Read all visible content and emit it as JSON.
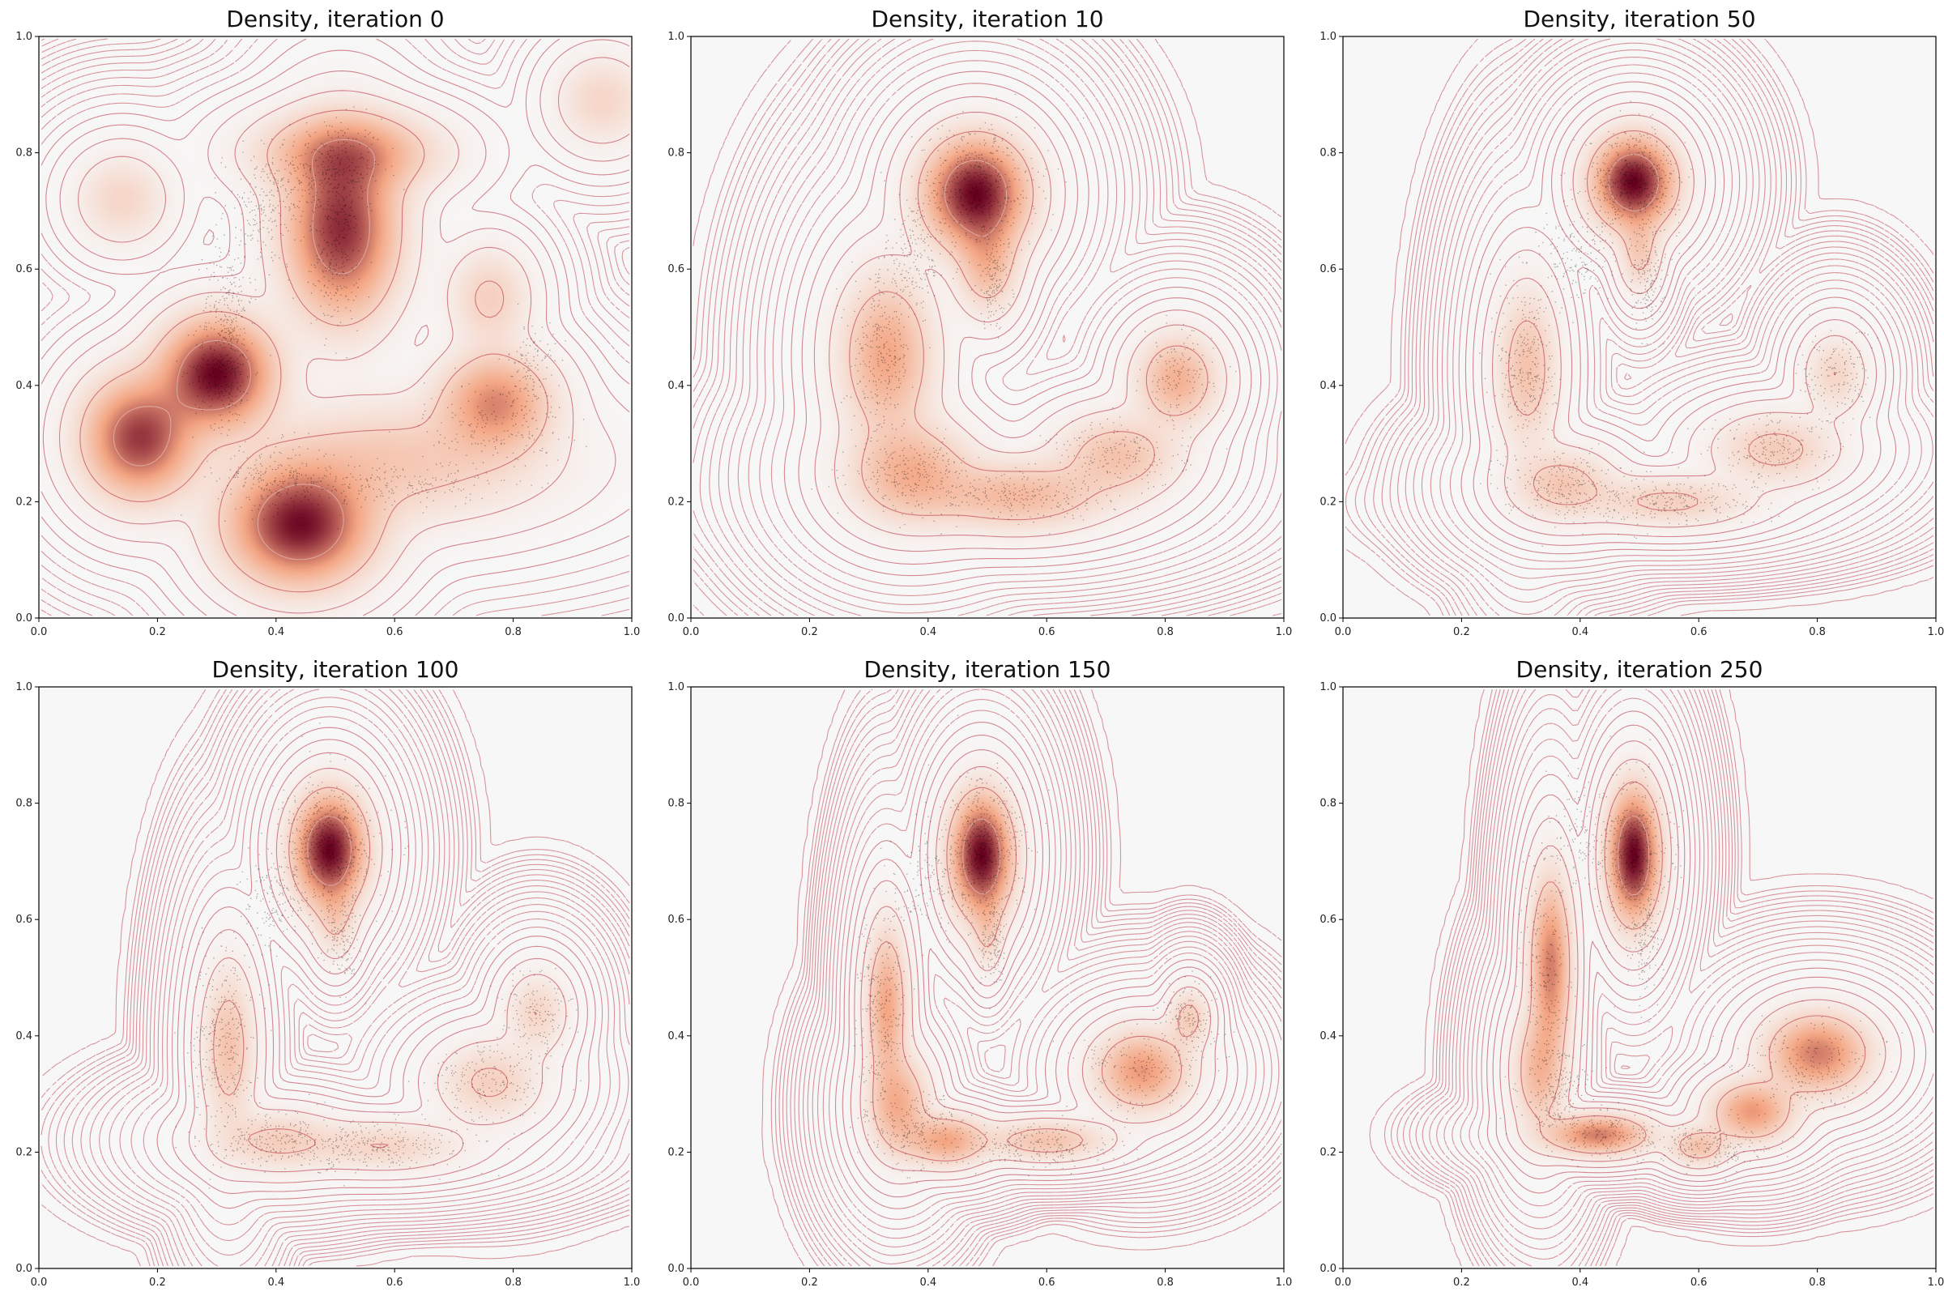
{
  "figure": {
    "axis_range": {
      "xlim": [
        0.0,
        1.0
      ],
      "ylim": [
        0.0,
        1.0
      ]
    },
    "x_ticks": [
      "0.0",
      "0.2",
      "0.4",
      "0.6",
      "0.8",
      "1.0"
    ],
    "y_ticks": [
      "0.0",
      "0.2",
      "0.4",
      "0.6",
      "0.8",
      "1.0"
    ],
    "colormap": {
      "low": "#f7f7f7",
      "mid": "#f4a582",
      "high": "#67001f"
    },
    "contour_color": "#b2182b",
    "scatter_color": "#000000"
  },
  "chart_data": [
    {
      "type": "heatmap",
      "title": "Density, iteration 0",
      "xlim": [
        0,
        1
      ],
      "ylim": [
        0,
        1
      ],
      "grid": false,
      "density_components": [
        {
          "x": 0.3,
          "y": 0.42,
          "sx": 0.055,
          "sy": 0.055,
          "w": 1.0
        },
        {
          "x": 0.44,
          "y": 0.16,
          "sx": 0.07,
          "sy": 0.06,
          "w": 0.95
        },
        {
          "x": 0.17,
          "y": 0.31,
          "sx": 0.055,
          "sy": 0.06,
          "w": 0.8
        },
        {
          "x": 0.51,
          "y": 0.67,
          "sx": 0.055,
          "sy": 0.09,
          "w": 0.85
        },
        {
          "x": 0.52,
          "y": 0.8,
          "sx": 0.085,
          "sy": 0.04,
          "w": 0.45
        },
        {
          "x": 0.77,
          "y": 0.37,
          "sx": 0.055,
          "sy": 0.05,
          "w": 0.5
        },
        {
          "x": 0.76,
          "y": 0.55,
          "sx": 0.04,
          "sy": 0.05,
          "w": 0.18
        },
        {
          "x": 0.14,
          "y": 0.72,
          "sx": 0.045,
          "sy": 0.045,
          "w": 0.15
        },
        {
          "x": 0.95,
          "y": 0.89,
          "sx": 0.045,
          "sy": 0.045,
          "w": 0.15
        },
        {
          "x": 0.6,
          "y": 0.27,
          "sx": 0.15,
          "sy": 0.06,
          "w": 0.22
        }
      ],
      "sample_clusters": [
        {
          "x": 0.49,
          "y": 0.77,
          "sx": 0.045,
          "sy": 0.045,
          "n": 350
        },
        {
          "x": 0.5,
          "y": 0.62,
          "sx": 0.02,
          "sy": 0.06,
          "n": 250
        },
        {
          "x": 0.38,
          "y": 0.7,
          "sx": 0.035,
          "sy": 0.05,
          "n": 200
        },
        {
          "x": 0.32,
          "y": 0.55,
          "sx": 0.02,
          "sy": 0.05,
          "n": 150
        },
        {
          "x": 0.31,
          "y": 0.43,
          "sx": 0.025,
          "sy": 0.05,
          "n": 300
        },
        {
          "x": 0.4,
          "y": 0.24,
          "sx": 0.05,
          "sy": 0.03,
          "n": 250
        },
        {
          "x": 0.6,
          "y": 0.23,
          "sx": 0.08,
          "sy": 0.02,
          "n": 200
        },
        {
          "x": 0.77,
          "y": 0.33,
          "sx": 0.06,
          "sy": 0.04,
          "n": 200
        },
        {
          "x": 0.83,
          "y": 0.43,
          "sx": 0.02,
          "sy": 0.04,
          "n": 120
        }
      ]
    },
    {
      "type": "heatmap",
      "title": "Density, iteration 10",
      "xlim": [
        0,
        1
      ],
      "ylim": [
        0,
        1
      ],
      "grid": false,
      "density_components": [
        {
          "x": 0.48,
          "y": 0.73,
          "sx": 0.05,
          "sy": 0.055,
          "w": 1.0
        },
        {
          "x": 0.5,
          "y": 0.61,
          "sx": 0.03,
          "sy": 0.05,
          "w": 0.3
        },
        {
          "x": 0.33,
          "y": 0.45,
          "sx": 0.045,
          "sy": 0.08,
          "w": 0.4
        },
        {
          "x": 0.37,
          "y": 0.25,
          "sx": 0.06,
          "sy": 0.05,
          "w": 0.35
        },
        {
          "x": 0.55,
          "y": 0.21,
          "sx": 0.09,
          "sy": 0.035,
          "w": 0.3
        },
        {
          "x": 0.72,
          "y": 0.28,
          "sx": 0.06,
          "sy": 0.04,
          "w": 0.25
        },
        {
          "x": 0.82,
          "y": 0.41,
          "sx": 0.04,
          "sy": 0.045,
          "w": 0.35
        }
      ],
      "sample_clusters": [
        {
          "x": 0.48,
          "y": 0.74,
          "sx": 0.05,
          "sy": 0.055,
          "n": 500
        },
        {
          "x": 0.51,
          "y": 0.58,
          "sx": 0.015,
          "sy": 0.04,
          "n": 150
        },
        {
          "x": 0.38,
          "y": 0.62,
          "sx": 0.025,
          "sy": 0.05,
          "n": 150
        },
        {
          "x": 0.32,
          "y": 0.45,
          "sx": 0.025,
          "sy": 0.07,
          "n": 300
        },
        {
          "x": 0.37,
          "y": 0.25,
          "sx": 0.05,
          "sy": 0.03,
          "n": 250
        },
        {
          "x": 0.55,
          "y": 0.21,
          "sx": 0.08,
          "sy": 0.02,
          "n": 250
        },
        {
          "x": 0.72,
          "y": 0.28,
          "sx": 0.06,
          "sy": 0.03,
          "n": 200
        },
        {
          "x": 0.82,
          "y": 0.41,
          "sx": 0.03,
          "sy": 0.04,
          "n": 150
        }
      ]
    },
    {
      "type": "heatmap",
      "title": "Density, iteration 50",
      "xlim": [
        0,
        1
      ],
      "ylim": [
        0,
        1
      ],
      "grid": false,
      "density_components": [
        {
          "x": 0.49,
          "y": 0.75,
          "sx": 0.04,
          "sy": 0.045,
          "w": 1.0
        },
        {
          "x": 0.5,
          "y": 0.63,
          "sx": 0.02,
          "sy": 0.04,
          "w": 0.2
        },
        {
          "x": 0.31,
          "y": 0.43,
          "sx": 0.03,
          "sy": 0.08,
          "w": 0.25
        },
        {
          "x": 0.37,
          "y": 0.23,
          "sx": 0.05,
          "sy": 0.035,
          "w": 0.22
        },
        {
          "x": 0.55,
          "y": 0.2,
          "sx": 0.08,
          "sy": 0.025,
          "w": 0.18
        },
        {
          "x": 0.73,
          "y": 0.29,
          "sx": 0.06,
          "sy": 0.035,
          "w": 0.2
        },
        {
          "x": 0.83,
          "y": 0.42,
          "sx": 0.03,
          "sy": 0.04,
          "w": 0.15
        }
      ],
      "sample_clusters": [
        {
          "x": 0.49,
          "y": 0.75,
          "sx": 0.04,
          "sy": 0.045,
          "n": 500
        },
        {
          "x": 0.51,
          "y": 0.58,
          "sx": 0.015,
          "sy": 0.04,
          "n": 150
        },
        {
          "x": 0.39,
          "y": 0.62,
          "sx": 0.03,
          "sy": 0.04,
          "n": 150
        },
        {
          "x": 0.31,
          "y": 0.43,
          "sx": 0.025,
          "sy": 0.08,
          "n": 300
        },
        {
          "x": 0.37,
          "y": 0.23,
          "sx": 0.05,
          "sy": 0.03,
          "n": 250
        },
        {
          "x": 0.55,
          "y": 0.2,
          "sx": 0.08,
          "sy": 0.02,
          "n": 250
        },
        {
          "x": 0.73,
          "y": 0.29,
          "sx": 0.06,
          "sy": 0.03,
          "n": 200
        },
        {
          "x": 0.83,
          "y": 0.42,
          "sx": 0.03,
          "sy": 0.04,
          "n": 150
        }
      ]
    },
    {
      "type": "heatmap",
      "title": "Density, iteration 100",
      "xlim": [
        0,
        1
      ],
      "ylim": [
        0,
        1
      ],
      "grid": false,
      "density_components": [
        {
          "x": 0.49,
          "y": 0.72,
          "sx": 0.035,
          "sy": 0.055,
          "w": 1.0
        },
        {
          "x": 0.5,
          "y": 0.6,
          "sx": 0.02,
          "sy": 0.04,
          "w": 0.15
        },
        {
          "x": 0.32,
          "y": 0.38,
          "sx": 0.025,
          "sy": 0.08,
          "w": 0.25
        },
        {
          "x": 0.4,
          "y": 0.22,
          "sx": 0.06,
          "sy": 0.03,
          "w": 0.18
        },
        {
          "x": 0.58,
          "y": 0.21,
          "sx": 0.08,
          "sy": 0.025,
          "w": 0.15
        },
        {
          "x": 0.76,
          "y": 0.32,
          "sx": 0.05,
          "sy": 0.04,
          "w": 0.18
        },
        {
          "x": 0.84,
          "y": 0.44,
          "sx": 0.03,
          "sy": 0.04,
          "w": 0.15
        }
      ],
      "sample_clusters": [
        {
          "x": 0.49,
          "y": 0.73,
          "sx": 0.04,
          "sy": 0.055,
          "n": 500
        },
        {
          "x": 0.51,
          "y": 0.57,
          "sx": 0.015,
          "sy": 0.04,
          "n": 150
        },
        {
          "x": 0.4,
          "y": 0.63,
          "sx": 0.03,
          "sy": 0.04,
          "n": 150
        },
        {
          "x": 0.31,
          "y": 0.4,
          "sx": 0.025,
          "sy": 0.08,
          "n": 300
        },
        {
          "x": 0.4,
          "y": 0.22,
          "sx": 0.06,
          "sy": 0.025,
          "n": 250
        },
        {
          "x": 0.58,
          "y": 0.21,
          "sx": 0.08,
          "sy": 0.02,
          "n": 250
        },
        {
          "x": 0.76,
          "y": 0.32,
          "sx": 0.05,
          "sy": 0.035,
          "n": 200
        },
        {
          "x": 0.84,
          "y": 0.44,
          "sx": 0.03,
          "sy": 0.04,
          "n": 150
        }
      ]
    },
    {
      "type": "heatmap",
      "title": "Density, iteration 150",
      "xlim": [
        0,
        1
      ],
      "ylim": [
        0,
        1
      ],
      "grid": false,
      "density_components": [
        {
          "x": 0.49,
          "y": 0.71,
          "sx": 0.03,
          "sy": 0.06,
          "w": 1.0
        },
        {
          "x": 0.5,
          "y": 0.58,
          "sx": 0.015,
          "sy": 0.04,
          "w": 0.15
        },
        {
          "x": 0.33,
          "y": 0.45,
          "sx": 0.02,
          "sy": 0.08,
          "w": 0.4
        },
        {
          "x": 0.35,
          "y": 0.28,
          "sx": 0.03,
          "sy": 0.05,
          "w": 0.35
        },
        {
          "x": 0.43,
          "y": 0.22,
          "sx": 0.04,
          "sy": 0.025,
          "w": 0.4
        },
        {
          "x": 0.6,
          "y": 0.22,
          "sx": 0.06,
          "sy": 0.02,
          "w": 0.25
        },
        {
          "x": 0.76,
          "y": 0.34,
          "sx": 0.045,
          "sy": 0.04,
          "w": 0.45
        },
        {
          "x": 0.84,
          "y": 0.43,
          "sx": 0.02,
          "sy": 0.03,
          "w": 0.2
        }
      ],
      "sample_clusters": [
        {
          "x": 0.49,
          "y": 0.72,
          "sx": 0.035,
          "sy": 0.06,
          "n": 500
        },
        {
          "x": 0.51,
          "y": 0.56,
          "sx": 0.012,
          "sy": 0.04,
          "n": 150
        },
        {
          "x": 0.4,
          "y": 0.66,
          "sx": 0.03,
          "sy": 0.04,
          "n": 120
        },
        {
          "x": 0.32,
          "y": 0.44,
          "sx": 0.02,
          "sy": 0.09,
          "n": 300
        },
        {
          "x": 0.38,
          "y": 0.24,
          "sx": 0.04,
          "sy": 0.03,
          "n": 250
        },
        {
          "x": 0.58,
          "y": 0.21,
          "sx": 0.07,
          "sy": 0.02,
          "n": 250
        },
        {
          "x": 0.76,
          "y": 0.34,
          "sx": 0.05,
          "sy": 0.035,
          "n": 200
        },
        {
          "x": 0.84,
          "y": 0.43,
          "sx": 0.025,
          "sy": 0.035,
          "n": 150
        }
      ]
    },
    {
      "type": "heatmap",
      "title": "Density, iteration 250",
      "xlim": [
        0,
        1
      ],
      "ylim": [
        0,
        1
      ],
      "grid": false,
      "density_components": [
        {
          "x": 0.49,
          "y": 0.71,
          "sx": 0.025,
          "sy": 0.065,
          "w": 1.0
        },
        {
          "x": 0.35,
          "y": 0.52,
          "sx": 0.02,
          "sy": 0.09,
          "w": 0.55
        },
        {
          "x": 0.33,
          "y": 0.34,
          "sx": 0.025,
          "sy": 0.06,
          "w": 0.3
        },
        {
          "x": 0.43,
          "y": 0.23,
          "sx": 0.05,
          "sy": 0.02,
          "w": 0.55
        },
        {
          "x": 0.6,
          "y": 0.21,
          "sx": 0.03,
          "sy": 0.02,
          "w": 0.25
        },
        {
          "x": 0.69,
          "y": 0.27,
          "sx": 0.04,
          "sy": 0.03,
          "w": 0.45
        },
        {
          "x": 0.8,
          "y": 0.37,
          "sx": 0.05,
          "sy": 0.04,
          "w": 0.55
        }
      ],
      "sample_clusters": [
        {
          "x": 0.49,
          "y": 0.71,
          "sx": 0.03,
          "sy": 0.07,
          "n": 450
        },
        {
          "x": 0.51,
          "y": 0.56,
          "sx": 0.012,
          "sy": 0.04,
          "n": 120
        },
        {
          "x": 0.4,
          "y": 0.74,
          "sx": 0.03,
          "sy": 0.04,
          "n": 100
        },
        {
          "x": 0.34,
          "y": 0.5,
          "sx": 0.02,
          "sy": 0.1,
          "n": 250
        },
        {
          "x": 0.36,
          "y": 0.3,
          "sx": 0.03,
          "sy": 0.04,
          "n": 200
        },
        {
          "x": 0.45,
          "y": 0.23,
          "sx": 0.05,
          "sy": 0.02,
          "n": 200
        },
        {
          "x": 0.62,
          "y": 0.21,
          "sx": 0.05,
          "sy": 0.02,
          "n": 200
        },
        {
          "x": 0.78,
          "y": 0.35,
          "sx": 0.06,
          "sy": 0.04,
          "n": 250
        }
      ]
    }
  ]
}
